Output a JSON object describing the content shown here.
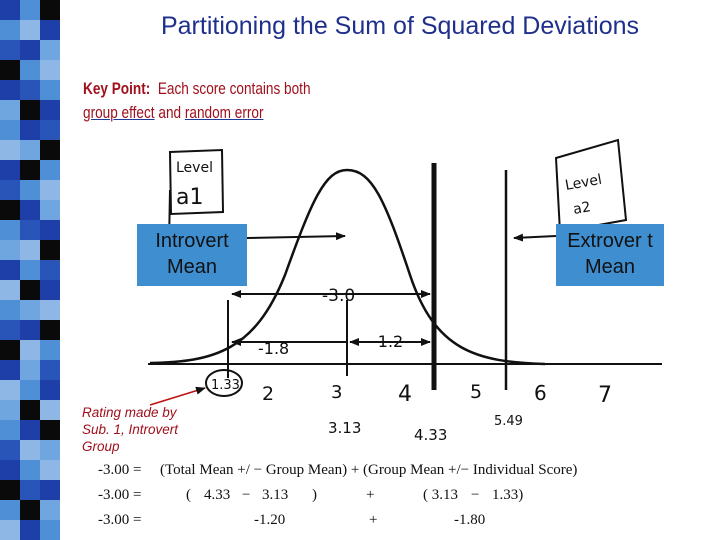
{
  "title": "Partitioning the Sum of Squared Deviations",
  "key_point": {
    "label": "Key Point:",
    "line1": "Each score contains both",
    "group_effect": "group effect",
    "and": "and",
    "random_error": "random error"
  },
  "boxes": {
    "introvert": "Introvert Mean",
    "extrovert": "Extrover t Mean"
  },
  "handwritten": {
    "level_a1_top": "Level",
    "level_a1_bottom": "a1",
    "level_a2_top": "Level",
    "level_a2_bottom": "a2",
    "dev_total": "-3.0",
    "dev_indiv": "-1.8",
    "dev_group": "-1.2",
    "axis_ticks": [
      "1.33",
      "2",
      "3",
      "4",
      "5",
      "6",
      "7"
    ],
    "mean_introvert": "3.13",
    "mean_grand": "4.33",
    "mean_extrovert": "5.49"
  },
  "rating_note": [
    "Rating made by",
    "Sub. 1, Introvert",
    "Group"
  ],
  "equations": [
    [
      "-3.00 =",
      "(Total Mean +/ − Group Mean) + (Group Mean +/− Individual Score)"
    ],
    [
      "-3.00 =",
      "(",
      "4.33",
      "−",
      "3.13",
      ")",
      "+",
      "( 3.13",
      "−",
      "1.33)"
    ],
    [
      "-3.00 =",
      "-1.20",
      "+",
      "-1.80"
    ]
  ],
  "colors": {
    "title": "#1f2f8c",
    "key_point": "#a0101c",
    "box": "#3f8fd0",
    "strip": [
      "#1f3fa8",
      "#4f8fd6",
      "#0a0a0a",
      "#8fb7e6",
      "#2a55b8",
      "#6fa6df"
    ]
  }
}
